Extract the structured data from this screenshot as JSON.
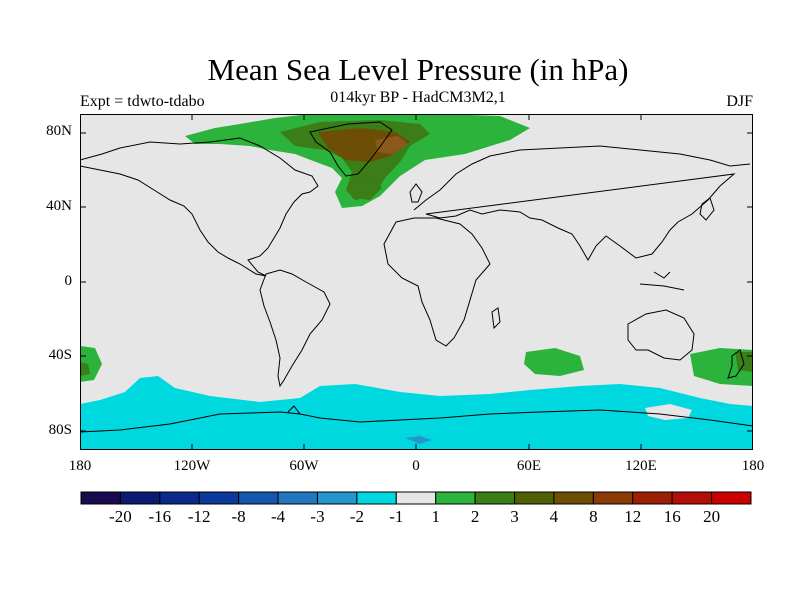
{
  "title": "Mean Sea Level Pressure (in hPa)",
  "subtitle": "014kyr BP - HadCM3M2,1",
  "experiment": "Expt = tdwto-tdabo",
  "season": "DJF",
  "axes": {
    "lat_labels": [
      "80N",
      "40N",
      "0",
      "40S",
      "80S"
    ],
    "lon_labels": [
      "180",
      "120W",
      "60W",
      "0",
      "60E",
      "120E",
      "180"
    ]
  },
  "colorbar": {
    "colors": [
      "#1a0a4f",
      "#0b1a72",
      "#0c2a8c",
      "#0c3a9c",
      "#1656ac",
      "#2277bf",
      "#2596cd",
      "#00d8e0",
      "#e6e6e6",
      "#2bb33b",
      "#3b7d16",
      "#4f5f05",
      "#6c4f05",
      "#8b3a06",
      "#9c1f06",
      "#b30f08",
      "#cc0000"
    ],
    "labels": [
      "-20",
      "-16",
      "-12",
      "-8",
      "-4",
      "-3",
      "-2",
      "-1",
      "1",
      "2",
      "3",
      "4",
      "8",
      "12",
      "16",
      "20"
    ]
  },
  "colors": {
    "background_fill": "#e6e6e6",
    "positive_small": "#2bb33b",
    "positive_medium": "#3b7d16",
    "positive_large": "#6c4f05",
    "positive_max": "#8b5a1a",
    "negative_small": "#00d8e0",
    "negative_medium": "#2596cd"
  }
}
